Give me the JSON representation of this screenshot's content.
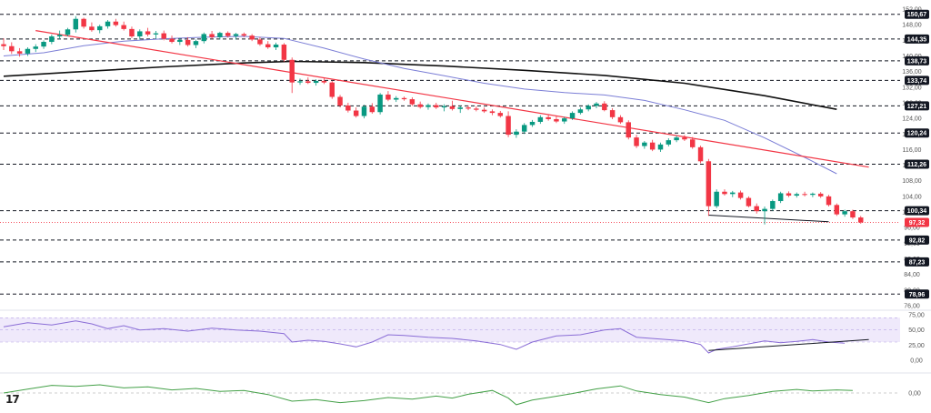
{
  "brand": {
    "logo_text": "17"
  },
  "colors": {
    "bull": "#089981",
    "bear": "#f23645",
    "sma_fast": "#7b7ed6",
    "sma_slow": "#111111",
    "trend_red": "#f23645",
    "rsi": "#8a6dd6",
    "rsi_band": "#efe9fb",
    "macd": "#43a047",
    "current_price": "#f23645",
    "level_label": "#131722"
  },
  "chart_data": [
    {
      "type": "candlestick",
      "price_axis": {
        "ylim": [
          76,
          152
        ],
        "ticks": [
          152,
          148,
          144,
          140,
          136,
          132,
          128,
          124,
          120,
          116,
          112,
          108,
          104,
          100,
          96,
          92,
          88,
          84,
          80,
          76
        ]
      },
      "tick_labels": [
        "152,00",
        "148,00",
        "144,00",
        "140,00",
        "136,00",
        "132,00",
        "128,00",
        "124,00",
        "120,00",
        "116,00",
        "112,00",
        "108,00",
        "104,00",
        "100,00",
        "96,00",
        "92,00",
        "88,00",
        "84,00",
        "80,00",
        "76,00"
      ],
      "levels": [
        {
          "value": 150.67,
          "label": "150,67"
        },
        {
          "value": 144.35,
          "label": "144,35"
        },
        {
          "value": 138.73,
          "label": "138,73"
        },
        {
          "value": 133.74,
          "label": "133,74"
        },
        {
          "value": 127.21,
          "label": "127,21"
        },
        {
          "value": 120.24,
          "label": "120,24"
        },
        {
          "value": 112.26,
          "label": "112,26"
        },
        {
          "value": 100.34,
          "label": "100,34"
        },
        {
          "value": 92.82,
          "label": "92,82"
        },
        {
          "value": 87.23,
          "label": "87,23"
        },
        {
          "value": 78.96,
          "label": "78,96"
        }
      ],
      "current_price": {
        "value": 97.32,
        "label": "97,32"
      },
      "candles": [
        [
          143.0,
          144.5,
          141.5,
          142.5
        ],
        [
          142.5,
          143.5,
          140.5,
          141.2
        ],
        [
          141.2,
          142.0,
          139.8,
          140.6
        ],
        [
          140.6,
          142.2,
          140.0,
          141.8
        ],
        [
          141.8,
          143.0,
          141.0,
          142.4
        ],
        [
          142.4,
          144.0,
          141.8,
          143.6
        ],
        [
          143.6,
          145.5,
          143.0,
          145.0
        ],
        [
          145.0,
          146.5,
          144.2,
          145.4
        ],
        [
          145.4,
          147.2,
          145.0,
          146.8
        ],
        [
          146.8,
          150.2,
          146.0,
          149.5
        ],
        [
          149.5,
          149.8,
          147.0,
          147.5
        ],
        [
          147.5,
          148.6,
          146.2,
          146.6
        ],
        [
          146.6,
          148.0,
          145.8,
          147.6
        ],
        [
          147.6,
          149.2,
          147.0,
          148.8
        ],
        [
          148.8,
          149.5,
          147.5,
          147.9
        ],
        [
          147.9,
          148.8,
          146.5,
          146.9
        ],
        [
          146.9,
          147.5,
          144.6,
          145.0
        ],
        [
          145.0,
          146.8,
          144.2,
          146.3
        ],
        [
          146.3,
          147.2,
          145.0,
          145.5
        ],
        [
          145.5,
          146.4,
          144.4,
          145.8
        ],
        [
          145.8,
          146.5,
          144.0,
          144.4
        ],
        [
          144.4,
          145.2,
          143.2,
          143.6
        ],
        [
          143.6,
          144.6,
          142.8,
          144.1
        ],
        [
          144.1,
          144.8,
          142.4,
          142.8
        ],
        [
          142.8,
          144.2,
          142.0,
          143.8
        ],
        [
          143.8,
          146.0,
          143.2,
          145.6
        ],
        [
          145.6,
          146.4,
          144.4,
          144.8
        ],
        [
          144.8,
          146.2,
          144.2,
          145.9
        ],
        [
          145.9,
          146.3,
          144.7,
          145.1
        ],
        [
          145.1,
          145.9,
          144.2,
          145.6
        ],
        [
          145.6,
          146.0,
          144.8,
          145.2
        ],
        [
          145.2,
          145.6,
          143.8,
          144.2
        ],
        [
          144.2,
          144.8,
          142.6,
          143.0
        ],
        [
          143.0,
          143.8,
          141.8,
          142.2
        ],
        [
          142.2,
          143.4,
          141.5,
          142.9
        ],
        [
          142.9,
          143.3,
          138.5,
          139.0
        ],
        [
          139.0,
          139.6,
          130.5,
          133.2
        ],
        [
          133.2,
          134.2,
          132.6,
          133.5
        ],
        [
          133.5,
          134.5,
          132.8,
          133.1
        ],
        [
          133.1,
          134.0,
          132.4,
          133.6
        ],
        [
          133.6,
          134.4,
          132.8,
          133.2
        ],
        [
          133.2,
          133.6,
          129.0,
          129.5
        ],
        [
          129.5,
          130.0,
          126.8,
          127.3
        ],
        [
          127.3,
          128.0,
          125.5,
          126.0
        ],
        [
          126.0,
          126.8,
          124.2,
          124.6
        ],
        [
          124.6,
          127.5,
          124.0,
          127.0
        ],
        [
          127.0,
          127.9,
          125.2,
          125.6
        ],
        [
          125.6,
          130.5,
          125.0,
          130.1
        ],
        [
          130.1,
          131.0,
          128.4,
          128.8
        ],
        [
          128.8,
          129.7,
          128.2,
          129.2
        ],
        [
          129.2,
          129.6,
          128.5,
          128.9
        ],
        [
          128.9,
          129.4,
          127.2,
          127.6
        ],
        [
          127.6,
          128.3,
          126.5,
          126.9
        ],
        [
          126.9,
          127.8,
          126.2,
          127.4
        ],
        [
          127.4,
          128.0,
          126.4,
          126.8
        ],
        [
          126.8,
          127.6,
          125.8,
          127.1
        ],
        [
          127.1,
          128.5,
          126.0,
          126.4
        ],
        [
          126.4,
          127.2,
          125.4,
          126.8
        ],
        [
          126.8,
          127.3,
          126.1,
          126.5
        ],
        [
          126.5,
          127.1,
          125.8,
          126.2
        ],
        [
          126.2,
          126.8,
          125.4,
          125.8
        ],
        [
          125.8,
          126.3,
          124.8,
          125.4
        ],
        [
          125.4,
          125.9,
          124.2,
          124.6
        ],
        [
          124.6,
          125.8,
          119.2,
          119.8
        ],
        [
          119.8,
          121.2,
          119.0,
          120.6
        ],
        [
          120.6,
          122.8,
          120.0,
          122.3
        ],
        [
          122.3,
          123.6,
          121.8,
          123.1
        ],
        [
          123.1,
          124.8,
          122.6,
          124.3
        ],
        [
          124.3,
          125.0,
          123.4,
          123.8
        ],
        [
          123.8,
          124.6,
          122.8,
          123.2
        ],
        [
          123.2,
          124.4,
          122.6,
          124.0
        ],
        [
          124.0,
          125.8,
          123.6,
          125.4
        ],
        [
          125.4,
          126.8,
          125.0,
          126.3
        ],
        [
          126.3,
          127.6,
          125.8,
          127.2
        ],
        [
          127.2,
          128.2,
          126.6,
          127.8
        ],
        [
          127.8,
          128.4,
          125.8,
          126.1
        ],
        [
          126.1,
          126.6,
          123.8,
          124.3
        ],
        [
          124.3,
          124.8,
          122.6,
          123.0
        ],
        [
          123.0,
          123.5,
          118.6,
          119.1
        ],
        [
          119.1,
          119.8,
          116.4,
          116.9
        ],
        [
          116.9,
          118.2,
          116.2,
          117.8
        ],
        [
          117.8,
          118.5,
          115.6,
          116.0
        ],
        [
          116.0,
          117.8,
          115.4,
          117.3
        ],
        [
          117.3,
          118.9,
          116.8,
          118.4
        ],
        [
          118.4,
          119.6,
          117.9,
          119.1
        ],
        [
          119.1,
          119.7,
          118.2,
          118.6
        ],
        [
          118.6,
          119.2,
          116.2,
          116.6
        ],
        [
          116.6,
          117.0,
          112.5,
          113.0
        ],
        [
          113.0,
          113.6,
          99.0,
          101.5
        ],
        [
          101.5,
          105.8,
          101.0,
          105.2
        ],
        [
          105.2,
          105.8,
          104.2,
          104.6
        ],
        [
          104.6,
          105.4,
          103.8,
          105.0
        ],
        [
          105.0,
          105.5,
          103.2,
          103.6
        ],
        [
          103.6,
          104.0,
          101.2,
          101.5
        ],
        [
          101.5,
          102.2,
          99.6,
          100.2
        ],
        [
          100.2,
          101.4,
          96.8,
          100.8
        ],
        [
          100.8,
          103.2,
          100.3,
          102.8
        ],
        [
          102.8,
          105.2,
          102.3,
          104.8
        ],
        [
          104.8,
          105.3,
          103.8,
          104.2
        ],
        [
          104.2,
          105.0,
          103.7,
          104.6
        ],
        [
          104.6,
          105.2,
          104.0,
          104.4
        ],
        [
          104.4,
          105.0,
          103.8,
          104.7
        ],
        [
          104.7,
          105.1,
          103.6,
          104.0
        ],
        [
          104.0,
          104.4,
          101.4,
          101.8
        ],
        [
          101.8,
          102.2,
          99.0,
          99.4
        ],
        [
          99.4,
          100.6,
          98.8,
          100.2
        ],
        [
          100.2,
          100.6,
          98.2,
          98.6
        ],
        [
          98.6,
          99.0,
          97.0,
          97.32
        ]
      ],
      "sma_fast": [
        [
          0,
          140.0
        ],
        [
          5,
          140.8
        ],
        [
          10,
          142.6
        ],
        [
          15,
          143.8
        ],
        [
          20,
          144.4
        ],
        [
          25,
          144.8
        ],
        [
          30,
          145.0
        ],
        [
          35,
          144.5
        ],
        [
          40,
          142.0
        ],
        [
          45,
          139.2
        ],
        [
          50,
          136.8
        ],
        [
          55,
          134.9
        ],
        [
          60,
          133.0
        ],
        [
          65,
          131.5
        ],
        [
          70,
          130.6
        ],
        [
          75,
          130.0
        ],
        [
          80,
          128.6
        ],
        [
          85,
          126.2
        ],
        [
          90,
          123.5
        ],
        [
          95,
          119.0
        ],
        [
          100,
          114.0
        ],
        [
          104,
          109.8
        ]
      ],
      "sma_slow": [
        [
          0,
          134.8
        ],
        [
          10,
          136.0
        ],
        [
          20,
          137.2
        ],
        [
          30,
          138.2
        ],
        [
          36,
          138.6
        ],
        [
          45,
          138.3
        ],
        [
          55,
          137.4
        ],
        [
          65,
          136.3
        ],
        [
          75,
          135.0
        ],
        [
          85,
          133.0
        ],
        [
          95,
          129.8
        ],
        [
          104,
          126.3
        ]
      ],
      "trend_red": [
        [
          4,
          146.5
        ],
        [
          108,
          111.5
        ]
      ],
      "trend_black": [
        [
          88,
          99.2
        ],
        [
          103,
          97.5
        ]
      ]
    },
    {
      "type": "line",
      "name": "RSI",
      "ylim": [
        0,
        75
      ],
      "ticks": [
        75,
        50,
        25,
        0
      ],
      "tick_labels": [
        "75,00",
        "50,00",
        "25,00",
        "0,00"
      ],
      "band": [
        30,
        70
      ],
      "values": [
        [
          0,
          55
        ],
        [
          3,
          62
        ],
        [
          6,
          58
        ],
        [
          9,
          65
        ],
        [
          11,
          60
        ],
        [
          13,
          52
        ],
        [
          15,
          57
        ],
        [
          17,
          50
        ],
        [
          20,
          52
        ],
        [
          23,
          48
        ],
        [
          26,
          53
        ],
        [
          29,
          50
        ],
        [
          32,
          48
        ],
        [
          35,
          44
        ],
        [
          36,
          30
        ],
        [
          38,
          33
        ],
        [
          40,
          31
        ],
        [
          42,
          27
        ],
        [
          44,
          22
        ],
        [
          46,
          30
        ],
        [
          48,
          42
        ],
        [
          50,
          41
        ],
        [
          53,
          38
        ],
        [
          56,
          36
        ],
        [
          59,
          32
        ],
        [
          62,
          26
        ],
        [
          64,
          18
        ],
        [
          66,
          30
        ],
        [
          69,
          40
        ],
        [
          72,
          42
        ],
        [
          75,
          50
        ],
        [
          77,
          52
        ],
        [
          79,
          38
        ],
        [
          82,
          35
        ],
        [
          85,
          32
        ],
        [
          87,
          26
        ],
        [
          88,
          12
        ],
        [
          89,
          18
        ],
        [
          91,
          22
        ],
        [
          93,
          27
        ],
        [
          95,
          32
        ],
        [
          97,
          29
        ],
        [
          99,
          31
        ],
        [
          101,
          34
        ],
        [
          103,
          30
        ],
        [
          105,
          28
        ]
      ],
      "trendline": [
        [
          88,
          16
        ],
        [
          108,
          34
        ]
      ]
    },
    {
      "type": "line",
      "name": "MACD",
      "ylim": [
        -5,
        5
      ],
      "ticks": [
        0
      ],
      "tick_labels": [
        "0,00"
      ],
      "values": [
        [
          0,
          0
        ],
        [
          3,
          1.5
        ],
        [
          6,
          3.0
        ],
        [
          9,
          2.6
        ],
        [
          12,
          3.2
        ],
        [
          15,
          2.0
        ],
        [
          18,
          2.4
        ],
        [
          21,
          1.2
        ],
        [
          24,
          1.8
        ],
        [
          27,
          0.6
        ],
        [
          30,
          1.0
        ],
        [
          33,
          -0.6
        ],
        [
          36,
          -3.2
        ],
        [
          39,
          -2.6
        ],
        [
          42,
          -3.8
        ],
        [
          45,
          -3.0
        ],
        [
          48,
          -1.8
        ],
        [
          51,
          -2.4
        ],
        [
          54,
          -1.2
        ],
        [
          56,
          -2.0
        ],
        [
          58,
          -0.5
        ],
        [
          61,
          1.0
        ],
        [
          63,
          -2.0
        ],
        [
          64,
          -4.6
        ],
        [
          66,
          -2.8
        ],
        [
          68,
          -1.8
        ],
        [
          71,
          -0.2
        ],
        [
          74,
          1.6
        ],
        [
          77,
          2.8
        ],
        [
          79,
          0.8
        ],
        [
          82,
          -0.6
        ],
        [
          85,
          -1.6
        ],
        [
          88,
          -3.8
        ],
        [
          90,
          -2.2
        ],
        [
          93,
          -1.0
        ],
        [
          96,
          0.6
        ],
        [
          99,
          1.4
        ],
        [
          101,
          0.8
        ],
        [
          104,
          1.2
        ],
        [
          106,
          1.0
        ]
      ]
    }
  ]
}
